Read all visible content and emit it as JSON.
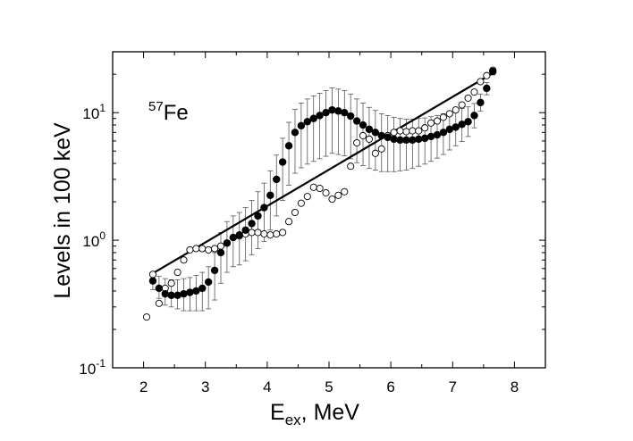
{
  "chart_data": {
    "type": "scatter",
    "title": "",
    "xlabel": "E",
    "xlabel_sub": "ex",
    "xlabel_suffix": ", MeV",
    "ylabel": "Levels in 100 keV",
    "x_scale": "linear",
    "y_scale": "log",
    "xlim": [
      1.5,
      8.5
    ],
    "ylim": [
      0.1,
      30
    ],
    "x_ticks": [
      2,
      3,
      4,
      5,
      6,
      7,
      8
    ],
    "x_tick_labels": [
      "2",
      "3",
      "4",
      "5",
      "6",
      "7",
      "8"
    ],
    "y_ticks": [
      0.1,
      1,
      10
    ],
    "y_tick_labels": [
      {
        "base": "10",
        "exp": "-1"
      },
      {
        "base": "10",
        "exp": "0"
      },
      {
        "base": "10",
        "exp": "1"
      }
    ],
    "grid": false,
    "legend": "none",
    "annotation": {
      "sup": "57",
      "text": "Fe"
    },
    "series": [
      {
        "marker": "filled-circle",
        "color": "#000000",
        "error_bars": true,
        "x": [
          2.15,
          2.25,
          2.35,
          2.45,
          2.55,
          2.65,
          2.75,
          2.85,
          2.95,
          3.05,
          3.15,
          3.25,
          3.35,
          3.45,
          3.55,
          3.65,
          3.75,
          3.85,
          3.95,
          4.05,
          4.15,
          4.25,
          4.35,
          4.45,
          4.55,
          4.65,
          4.75,
          4.85,
          4.95,
          5.05,
          5.15,
          5.25,
          5.35,
          5.45,
          5.55,
          5.65,
          5.75,
          5.85,
          5.95,
          6.05,
          6.15,
          6.25,
          6.35,
          6.45,
          6.55,
          6.65,
          6.75,
          6.85,
          6.95,
          7.05,
          7.15,
          7.25,
          7.35,
          7.45,
          7.55,
          7.65
        ],
        "y": [
          0.48,
          0.42,
          0.38,
          0.37,
          0.37,
          0.38,
          0.39,
          0.4,
          0.42,
          0.47,
          0.58,
          0.8,
          0.95,
          1.05,
          1.1,
          1.2,
          1.35,
          1.55,
          1.8,
          2.25,
          3.0,
          4.1,
          5.5,
          7.0,
          7.9,
          8.5,
          9.0,
          9.5,
          10.0,
          10.5,
          10.3,
          10.0,
          9.4,
          8.6,
          8.0,
          7.4,
          7.0,
          6.6,
          6.4,
          6.2,
          6.1,
          6.1,
          6.1,
          6.2,
          6.3,
          6.5,
          6.7,
          7.0,
          7.4,
          7.7,
          8.1,
          8.5,
          9.5,
          12.0,
          15.5,
          21.0
        ],
        "yerr_low": [
          0.41,
          0.35,
          0.31,
          0.3,
          0.29,
          0.28,
          0.28,
          0.28,
          0.28,
          0.29,
          0.34,
          0.46,
          0.56,
          0.62,
          0.64,
          0.69,
          0.77,
          0.86,
          0.98,
          1.2,
          1.55,
          2.05,
          2.7,
          3.35,
          3.7,
          3.95,
          4.15,
          4.35,
          4.55,
          4.8,
          4.7,
          4.6,
          4.35,
          4.05,
          3.85,
          3.65,
          3.55,
          3.45,
          3.45,
          3.45,
          3.5,
          3.55,
          3.65,
          3.8,
          3.95,
          4.15,
          4.4,
          4.7,
          5.1,
          5.5,
          5.95,
          6.5,
          7.6,
          10.3,
          13.8,
          19.8
        ],
        "yerr_high": [
          0.56,
          0.52,
          0.5,
          0.49,
          0.49,
          0.5,
          0.51,
          0.53,
          0.56,
          0.62,
          0.8,
          1.15,
          1.4,
          1.55,
          1.65,
          1.8,
          2.05,
          2.4,
          2.8,
          3.5,
          4.65,
          6.3,
          8.4,
          10.6,
          11.9,
          12.8,
          13.5,
          14.2,
          14.9,
          15.6,
          15.3,
          14.9,
          14.0,
          12.8,
          11.9,
          11.0,
          10.4,
          9.8,
          9.5,
          9.2,
          9.0,
          8.9,
          8.9,
          9.0,
          9.1,
          9.3,
          9.5,
          9.8,
          10.2,
          10.5,
          10.8,
          11.1,
          11.8,
          14.0,
          17.2,
          22.2
        ]
      },
      {
        "marker": "open-circle",
        "color": "#000000",
        "error_bars": false,
        "x": [
          2.05,
          2.15,
          2.25,
          2.35,
          2.45,
          2.55,
          2.65,
          2.75,
          2.85,
          2.95,
          3.05,
          3.15,
          3.25,
          3.35,
          3.45,
          3.55,
          3.65,
          3.75,
          3.85,
          3.95,
          4.05,
          4.15,
          4.25,
          4.35,
          4.45,
          4.55,
          4.65,
          4.75,
          4.85,
          4.95,
          5.05,
          5.15,
          5.25,
          5.35,
          5.45,
          5.55,
          5.65,
          5.75,
          5.85,
          5.95,
          6.05,
          6.15,
          6.25,
          6.35,
          6.45,
          6.55,
          6.65,
          6.75,
          6.85,
          6.95,
          7.05,
          7.15,
          7.25,
          7.35,
          7.45,
          7.55,
          7.65
        ],
        "y": [
          0.25,
          0.54,
          0.32,
          0.42,
          0.46,
          0.56,
          0.7,
          0.84,
          0.86,
          0.86,
          0.84,
          0.86,
          0.9,
          0.95,
          1.05,
          1.08,
          1.12,
          1.15,
          1.15,
          1.12,
          1.1,
          1.12,
          1.15,
          1.4,
          1.65,
          1.95,
          2.2,
          2.6,
          2.55,
          2.35,
          2.1,
          2.25,
          2.4,
          3.8,
          5.8,
          6.6,
          6.2,
          4.8,
          5.2,
          6.6,
          7.0,
          7.2,
          7.1,
          7.2,
          7.2,
          7.6,
          8.3,
          8.6,
          9.2,
          9.8,
          10.5,
          11.5,
          13.0,
          14.5,
          17.5,
          19.5,
          21.5
        ]
      },
      {
        "marker": "line",
        "color": "#000000",
        "error_bars": false,
        "x": [
          2.15,
          7.62
        ],
        "y": [
          0.55,
          20.0
        ]
      }
    ]
  }
}
